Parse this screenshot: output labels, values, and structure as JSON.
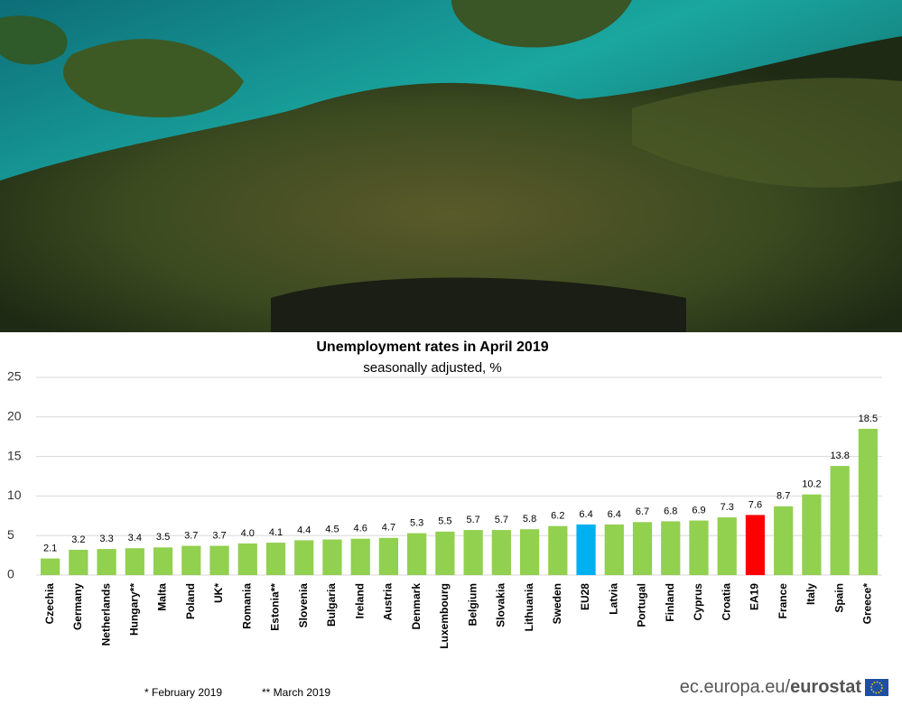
{
  "chart_data": {
    "type": "bar",
    "title": "Unemployment rates in April 2019",
    "subtitle": "seasonally adjusted, %",
    "categories": [
      "Czechia",
      "Germany",
      "Netherlands",
      "Hungary**",
      "Malta",
      "Poland",
      "UK*",
      "Romania",
      "Estonia**",
      "Slovenia",
      "Bulgaria",
      "Ireland",
      "Austria",
      "Denmark",
      "Luxembourg",
      "Belgium",
      "Slovakia",
      "Lithuania",
      "Sweden",
      "EU28",
      "Latvia",
      "Portugal",
      "Finland",
      "Cyprus",
      "Croatia",
      "EA19",
      "France",
      "Italy",
      "Spain",
      "Greece*"
    ],
    "values": [
      2.1,
      3.2,
      3.3,
      3.4,
      3.5,
      3.7,
      3.7,
      4.0,
      4.1,
      4.4,
      4.5,
      4.6,
      4.7,
      5.3,
      5.5,
      5.7,
      5.7,
      5.8,
      6.2,
      6.4,
      6.4,
      6.7,
      6.8,
      6.9,
      7.3,
      7.6,
      8.7,
      10.2,
      13.8,
      18.5
    ],
    "value_labels": [
      "2.1",
      "3.2",
      "3.3",
      "3.4",
      "3.5",
      "3.7",
      "3.7",
      "4.0",
      "4.1",
      "4.4",
      "4.5",
      "4.6",
      "4.7",
      "5.3",
      "5.5",
      "5.7",
      "5.7",
      "5.8",
      "6.2",
      "6.4",
      "6.4",
      "6.7",
      "6.8",
      "6.9",
      "7.3",
      "7.6",
      "8.7",
      "10.2",
      "13.8",
      "18.5"
    ],
    "colors": [
      "#92d050",
      "#92d050",
      "#92d050",
      "#92d050",
      "#92d050",
      "#92d050",
      "#92d050",
      "#92d050",
      "#92d050",
      "#92d050",
      "#92d050",
      "#92d050",
      "#92d050",
      "#92d050",
      "#92d050",
      "#92d050",
      "#92d050",
      "#92d050",
      "#92d050",
      "#00b0f0",
      "#92d050",
      "#92d050",
      "#92d050",
      "#92d050",
      "#92d050",
      "#ff0000",
      "#92d050",
      "#92d050",
      "#92d050",
      "#92d050"
    ],
    "ylim": [
      0,
      25
    ],
    "yticks": [
      0,
      5,
      10,
      15,
      20,
      25
    ],
    "grid": true,
    "footnotes": [
      "* February 2019",
      "** March 2019"
    ],
    "source": "ec.europa.eu/",
    "source_brand": "eurostat"
  }
}
